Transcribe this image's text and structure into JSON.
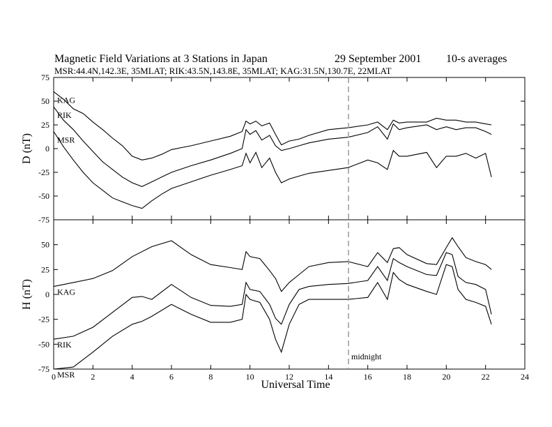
{
  "title": "Magnetic Field Variations at 3 Stations in Japan",
  "date": "29 September 2001",
  "averaging": "10-s averages",
  "stations_line": "MSR:44.4N,142.3E, 35MLAT;  RIK:43.5N,143.8E, 35MLAT;  KAG:31.5N,130.7E, 22MLAT",
  "midnight_label": "midnight",
  "chart_data": [
    {
      "type": "line",
      "ylabel": "D (nT)",
      "ylim": [
        -75,
        75
      ],
      "yticks": [
        75,
        50,
        25,
        0,
        -25,
        -50,
        -75
      ],
      "xlim": [
        0,
        24
      ],
      "xticks": [
        0,
        2,
        4,
        6,
        8,
        10,
        12,
        14,
        16,
        18,
        20,
        22,
        24
      ],
      "series": [
        {
          "name": "KAG",
          "x": [
            0,
            0.5,
            1,
            1.5,
            2,
            2.5,
            3,
            3.5,
            4,
            4.5,
            5,
            5.5,
            6,
            7,
            8,
            9,
            9.6,
            9.8,
            10,
            10.3,
            10.6,
            11,
            11.3,
            11.6,
            12,
            12.5,
            13,
            14,
            15,
            16,
            16.5,
            17,
            17.3,
            17.6,
            18,
            19,
            19.5,
            20,
            20.5,
            21,
            21.5,
            22,
            22.3
          ],
          "y": [
            60,
            52,
            42,
            37,
            28,
            20,
            11,
            3,
            -8,
            -12,
            -10,
            -6,
            -1,
            3,
            8,
            13,
            18,
            29,
            26,
            29,
            24,
            27,
            15,
            4,
            8,
            10,
            14,
            20,
            22,
            25,
            28,
            20,
            30,
            27,
            28,
            28,
            32,
            30,
            30,
            28,
            28,
            26,
            25
          ]
        },
        {
          "name": "RIK",
          "x": [
            0,
            0.5,
            1,
            1.5,
            2,
            2.5,
            3,
            3.5,
            4,
            4.5,
            5,
            5.5,
            6,
            7,
            8,
            9,
            9.6,
            9.8,
            10,
            10.3,
            10.6,
            11,
            11.3,
            11.6,
            12,
            12.5,
            13,
            14,
            15,
            16,
            16.5,
            17,
            17.3,
            17.6,
            18,
            19,
            19.5,
            20,
            20.5,
            21,
            21.5,
            22,
            22.3
          ],
          "y": [
            44,
            30,
            20,
            8,
            -3,
            -14,
            -22,
            -30,
            -36,
            -40,
            -35,
            -30,
            -25,
            -18,
            -12,
            -5,
            0,
            20,
            15,
            19,
            9,
            14,
            3,
            -2,
            0,
            3,
            6,
            10,
            12,
            17,
            23,
            10,
            26,
            20,
            22,
            25,
            20,
            23,
            20,
            22,
            22,
            18,
            15
          ]
        },
        {
          "name": "MSR",
          "x": [
            0,
            0.5,
            1,
            1.5,
            2,
            2.5,
            3,
            3.5,
            4,
            4.5,
            5,
            5.5,
            6,
            7,
            8,
            9,
            9.6,
            9.8,
            10,
            10.3,
            10.6,
            11,
            11.3,
            11.6,
            12,
            12.5,
            13,
            14,
            15,
            16,
            16.5,
            17,
            17.3,
            17.6,
            18,
            19,
            19.5,
            20,
            20.5,
            21,
            21.5,
            22,
            22.3
          ],
          "y": [
            18,
            2,
            -12,
            -25,
            -36,
            -44,
            -52,
            -56,
            -60,
            -63,
            -55,
            -48,
            -42,
            -35,
            -28,
            -22,
            -18,
            -5,
            -15,
            -4,
            -20,
            -10,
            -25,
            -36,
            -32,
            -29,
            -26,
            -23,
            -20,
            -12,
            -15,
            -22,
            -2,
            -8,
            -8,
            -4,
            -20,
            -8,
            -8,
            -5,
            -10,
            -5,
            -30
          ]
        }
      ]
    },
    {
      "type": "line",
      "ylabel": "H (nT)",
      "ylim": [
        -75,
        75
      ],
      "yticks": [
        50,
        25,
        0,
        -25,
        -50,
        -75
      ],
      "xlim": [
        0,
        24
      ],
      "xticks": [
        0,
        2,
        4,
        6,
        8,
        10,
        12,
        14,
        16,
        18,
        20,
        22,
        24
      ],
      "xlabel": "Universal Time",
      "series": [
        {
          "name": "KAG",
          "x": [
            0,
            1,
            2,
            3,
            4,
            5,
            6,
            7,
            8,
            9,
            9.6,
            9.8,
            10,
            10.5,
            11,
            11.3,
            11.6,
            12,
            12.5,
            13,
            14,
            15,
            16,
            16.5,
            17,
            17.3,
            17.6,
            18,
            19,
            19.5,
            20,
            20.3,
            20.6,
            21,
            21.5,
            22,
            22.3
          ],
          "y": [
            8,
            12,
            16,
            24,
            38,
            48,
            54,
            40,
            30,
            27,
            25,
            43,
            38,
            36,
            24,
            16,
            3,
            12,
            20,
            28,
            32,
            33,
            28,
            42,
            32,
            46,
            47,
            40,
            31,
            30,
            47,
            57,
            48,
            37,
            33,
            30,
            25
          ]
        },
        {
          "name": "RIK",
          "x": [
            0,
            1,
            2,
            3,
            4,
            4.5,
            5,
            6,
            7,
            8,
            9,
            9.6,
            9.8,
            10,
            10.5,
            11,
            11.3,
            11.6,
            12,
            12.5,
            13,
            14,
            15,
            16,
            16.5,
            17,
            17.3,
            17.6,
            18,
            19,
            19.5,
            20,
            20.3,
            20.6,
            21,
            21.5,
            22,
            22.3
          ],
          "y": [
            -45,
            -42,
            -33,
            -18,
            -3,
            -2,
            -5,
            10,
            -3,
            -11,
            -12,
            -10,
            12,
            5,
            3,
            -10,
            -24,
            -30,
            -10,
            5,
            8,
            10,
            11,
            14,
            28,
            14,
            36,
            32,
            28,
            20,
            19,
            42,
            40,
            18,
            12,
            10,
            5,
            -20
          ]
        },
        {
          "name": "MSR",
          "x": [
            0,
            1,
            2,
            3,
            4,
            4.5,
            5,
            6,
            7,
            8,
            9,
            9.6,
            9.8,
            10,
            10.5,
            11,
            11.3,
            11.6,
            12,
            12.5,
            13,
            14,
            15,
            16,
            16.5,
            17,
            17.3,
            17.6,
            18,
            19,
            19.5,
            20,
            20.3,
            20.6,
            21,
            21.5,
            22,
            22.3
          ],
          "y": [
            -75,
            -73,
            -58,
            -42,
            -30,
            -27,
            -22,
            -10,
            -20,
            -28,
            -28,
            -25,
            0,
            -5,
            -8,
            -25,
            -45,
            -58,
            -30,
            -10,
            -5,
            -5,
            -5,
            -3,
            12,
            -5,
            22,
            15,
            10,
            3,
            0,
            30,
            28,
            5,
            -5,
            -8,
            -12,
            -30
          ]
        }
      ]
    }
  ]
}
